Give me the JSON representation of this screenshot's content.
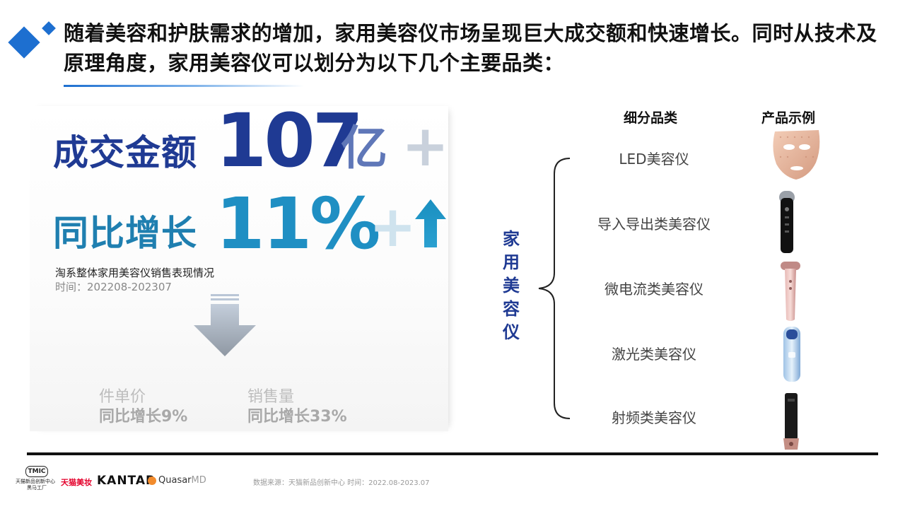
{
  "header": {
    "title": "随着美容和护肤需求的增加，家用美容仪市场呈现巨大成交额和快速增长。同时从技术及原理角度，家用美容仪可以划分为以下几个主要品类："
  },
  "kpi": {
    "gmv_label": "成交金额",
    "gmv_value": "107",
    "gmv_unit": "亿",
    "gmv_plus": "+",
    "yoy_label": "同比增长",
    "yoy_value": "11%",
    "yoy_plus": "+",
    "desc": "淘系整体家用美容仪销售表现情况",
    "time": "时间：202208-202307"
  },
  "metrics": [
    {
      "name": "件单价",
      "value": "同比增长9%"
    },
    {
      "name": "销售量",
      "value": "同比增长33%"
    }
  ],
  "categories": {
    "column_sub": "细分品类",
    "column_example": "产品示例",
    "group_label": "家用美容仪",
    "items": [
      "LED美容仪",
      "导入导出类美容仪",
      "微电流类美容仪",
      "激光类美容仪",
      "射频类美容仪"
    ]
  },
  "footer": {
    "source": "数据来源：天猫新品创新中心 时间：2022.08-2023.07",
    "tmic_badge": "TMIC",
    "tmic_line1": "天猫新品创新中心",
    "tmic_line2": "黑马工厂",
    "tmall_beauty": "天猫美妆",
    "kantar": "KANTAR",
    "quasar": "Quasar",
    "quasar_md": "MD"
  },
  "colors": {
    "accent_blue": "#1d6fd0",
    "navy": "#1f3a93",
    "teal": "#1f8fc3"
  }
}
